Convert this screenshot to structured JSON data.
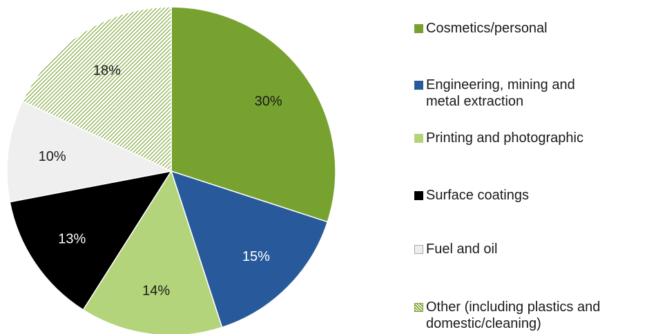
{
  "chart_data": {
    "type": "pie",
    "title": "",
    "slices": [
      {
        "label": "Cosmetics/personal",
        "value": 30,
        "display": "30%",
        "color": "#77a22f",
        "pattern": false
      },
      {
        "label": "Engineering, mining and\nmetal extraction",
        "value": 15,
        "display": "15%",
        "color": "#285a9b",
        "pattern": false
      },
      {
        "label": "Printing and photographic",
        "value": 14,
        "display": "14%",
        "color": "#b3d47a",
        "pattern": false
      },
      {
        "label": "Surface coatings",
        "value": 13,
        "display": "13%",
        "color": "#000000",
        "pattern": false
      },
      {
        "label": "Fuel and oil",
        "value": 10,
        "display": "10%",
        "color": "#efefef",
        "pattern": false
      },
      {
        "label": "Other (including plastics and\ndomestic/cleaning)",
        "value": 18,
        "display": "18%",
        "color": "#77a22f",
        "pattern": true
      }
    ],
    "start_angle_deg": 0,
    "direction": "clockwise",
    "legend_position": "right"
  }
}
